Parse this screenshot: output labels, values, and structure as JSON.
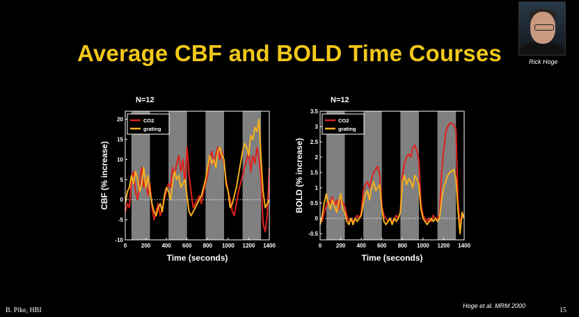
{
  "slide": {
    "title": "Average CBF and BOLD Time Courses",
    "photo_caption": "Rick Hoge",
    "footer_left": "B. Pike, HBI",
    "slide_number": "15",
    "citation": "Hoge et al. MRM 2000"
  },
  "colors": {
    "co2": "#e0201c",
    "grating": "#f6b21d",
    "stim_band": "#808080",
    "plot_bg": "#000000",
    "title": "#f2c81a"
  },
  "chart_data": [
    {
      "type": "line",
      "panel_title": "N=12",
      "xlabel": "Time (seconds)",
      "ylabel": "CBF (% increase)",
      "xlim": [
        0,
        1400
      ],
      "ylim": [
        -10,
        22
      ],
      "xticks": [
        0,
        200,
        400,
        600,
        800,
        1000,
        1200,
        1400
      ],
      "yticks": [
        -10,
        -5,
        0,
        5,
        10,
        15,
        20
      ],
      "stimulus_blocks": [
        [
          60,
          240
        ],
        [
          420,
          600
        ],
        [
          780,
          960
        ],
        [
          1140,
          1320
        ]
      ],
      "legend": [
        "CO2",
        "grating"
      ],
      "series": [
        {
          "name": "CO2",
          "x": [
            0,
            20,
            40,
            60,
            80,
            100,
            120,
            140,
            160,
            180,
            200,
            220,
            240,
            260,
            280,
            300,
            320,
            340,
            360,
            380,
            400,
            420,
            440,
            460,
            480,
            500,
            520,
            540,
            560,
            580,
            600,
            620,
            640,
            660,
            680,
            700,
            720,
            740,
            760,
            780,
            800,
            820,
            840,
            860,
            880,
            900,
            920,
            940,
            960,
            980,
            1000,
            1020,
            1040,
            1060,
            1080,
            1100,
            1120,
            1140,
            1160,
            1180,
            1200,
            1220,
            1240,
            1260,
            1280,
            1300,
            1320,
            1340,
            1360,
            1380,
            1400
          ],
          "values": [
            -3,
            -1,
            -2,
            5,
            7,
            2,
            0,
            4,
            8,
            3,
            5,
            1,
            4,
            -2,
            -5,
            -3,
            -1,
            -4,
            -2,
            0,
            2,
            4,
            3,
            8,
            6,
            9,
            11,
            7,
            10,
            4,
            13,
            6,
            2,
            -2,
            -1,
            0,
            1,
            -1,
            2,
            4,
            6,
            10,
            12,
            9,
            11,
            13,
            10,
            12,
            9,
            5,
            2,
            0,
            -3,
            -4,
            -1,
            2,
            4,
            6,
            8,
            10,
            12,
            7,
            11,
            9,
            13,
            10,
            5,
            -6,
            -8,
            -4,
            8
          ]
        },
        {
          "name": "grating",
          "x": [
            0,
            20,
            40,
            60,
            80,
            100,
            120,
            140,
            160,
            180,
            200,
            220,
            240,
            260,
            280,
            300,
            320,
            340,
            360,
            380,
            400,
            420,
            440,
            460,
            480,
            500,
            520,
            540,
            560,
            580,
            600,
            620,
            640,
            660,
            680,
            700,
            720,
            740,
            760,
            780,
            800,
            820,
            840,
            860,
            880,
            900,
            920,
            940,
            960,
            980,
            1000,
            1020,
            1040,
            1060,
            1080,
            1100,
            1120,
            1140,
            1160,
            1180,
            1200,
            1220,
            1240,
            1260,
            1280,
            1300,
            1320,
            1340,
            1360,
            1380,
            1400
          ],
          "values": [
            -1,
            2,
            3,
            6,
            4,
            7,
            5,
            2,
            4,
            8,
            3,
            6,
            2,
            -1,
            -3,
            -4,
            -2,
            -1,
            -3,
            1,
            3,
            2,
            0,
            4,
            7,
            5,
            6,
            3,
            4,
            5,
            1,
            -3,
            -4,
            -3,
            -2,
            -1,
            0,
            1,
            3,
            5,
            8,
            11,
            9,
            10,
            8,
            12,
            13,
            11,
            10,
            4,
            2,
            -2,
            -1,
            1,
            3,
            6,
            9,
            12,
            14,
            13,
            11,
            16,
            15,
            18,
            17,
            20,
            10,
            2,
            -2,
            -1,
            0
          ]
        }
      ]
    },
    {
      "type": "line",
      "panel_title": "N=12",
      "xlabel": "Time (seconds)",
      "ylabel": "BOLD  (% increase)",
      "xlim": [
        0,
        1400
      ],
      "ylim": [
        -0.7,
        3.5
      ],
      "xticks": [
        0,
        200,
        400,
        600,
        800,
        1000,
        1200,
        1400
      ],
      "yticks": [
        -0.5,
        0,
        0.5,
        1,
        1.5,
        2,
        2.5,
        3,
        3.5
      ],
      "stimulus_blocks": [
        [
          60,
          240
        ],
        [
          420,
          600
        ],
        [
          780,
          960
        ],
        [
          1140,
          1320
        ]
      ],
      "legend": [
        "CO2",
        "grating"
      ],
      "series": [
        {
          "name": "CO2",
          "x": [
            0,
            20,
            40,
            60,
            80,
            100,
            120,
            140,
            160,
            180,
            200,
            220,
            240,
            260,
            280,
            300,
            320,
            340,
            360,
            380,
            400,
            420,
            440,
            460,
            480,
            500,
            520,
            540,
            560,
            580,
            600,
            620,
            640,
            660,
            680,
            700,
            720,
            740,
            760,
            780,
            800,
            820,
            840,
            860,
            880,
            900,
            920,
            940,
            960,
            980,
            1000,
            1020,
            1040,
            1060,
            1080,
            1100,
            1120,
            1140,
            1160,
            1180,
            1200,
            1220,
            1240,
            1260,
            1280,
            1300,
            1320,
            1340,
            1360,
            1380,
            1400
          ],
          "values": [
            0,
            -0.1,
            0.2,
            0.4,
            0.6,
            0.5,
            0.7,
            0.4,
            0.6,
            0.3,
            0.7,
            0.5,
            0.4,
            0.1,
            -0.1,
            0,
            -0.1,
            0,
            0.1,
            0,
            0.2,
            0.9,
            1.1,
            1.2,
            1.0,
            1.3,
            1.5,
            1.6,
            1.7,
            1.4,
            0.4,
            0.1,
            0,
            -0.1,
            0,
            -0.1,
            0,
            0.1,
            0,
            0.2,
            1.4,
            1.8,
            2.0,
            2.1,
            2.0,
            2.3,
            2.4,
            2.2,
            1.9,
            0.5,
            0.1,
            0,
            -0.1,
            0,
            -0.1,
            0.1,
            0,
            0,
            0.1,
            1.5,
            2.2,
            2.8,
            3.0,
            3.1,
            3.1,
            3.05,
            2.9,
            0.6,
            -0.2,
            0.1,
            0
          ]
        },
        {
          "name": "grating",
          "x": [
            0,
            20,
            40,
            60,
            80,
            100,
            120,
            140,
            160,
            180,
            200,
            220,
            240,
            260,
            280,
            300,
            320,
            340,
            360,
            380,
            400,
            420,
            440,
            460,
            480,
            500,
            520,
            540,
            560,
            580,
            600,
            620,
            640,
            660,
            680,
            700,
            720,
            740,
            760,
            780,
            800,
            820,
            840,
            860,
            880,
            900,
            920,
            940,
            960,
            980,
            1000,
            1020,
            1040,
            1060,
            1080,
            1100,
            1120,
            1140,
            1160,
            1180,
            1200,
            1220,
            1240,
            1260,
            1280,
            1300,
            1320,
            1340,
            1360,
            1380,
            1400
          ],
          "values": [
            -0.2,
            0.1,
            0.5,
            0.8,
            0.5,
            0.3,
            0.6,
            0.4,
            0.2,
            0.5,
            0.8,
            0.3,
            0.2,
            -0.1,
            -0.2,
            0,
            -0.2,
            0,
            -0.1,
            0,
            0.1,
            0.5,
            0.8,
            0.9,
            0.6,
            1.0,
            1.2,
            0.9,
            1.0,
            1.1,
            0.3,
            -0.1,
            -0.2,
            -0.1,
            0,
            -0.2,
            0,
            -0.1,
            0,
            0.2,
            1.2,
            1.4,
            1.1,
            1.3,
            1.2,
            1.0,
            1.4,
            1.3,
            1.1,
            0.3,
            0,
            -0.1,
            -0.2,
            -0.1,
            0,
            -0.1,
            0,
            -0.1,
            0,
            0.6,
            1.0,
            1.2,
            1.4,
            1.5,
            1.55,
            1.6,
            1.3,
            0.3,
            -0.5,
            0.2,
            0
          ]
        }
      ]
    }
  ]
}
